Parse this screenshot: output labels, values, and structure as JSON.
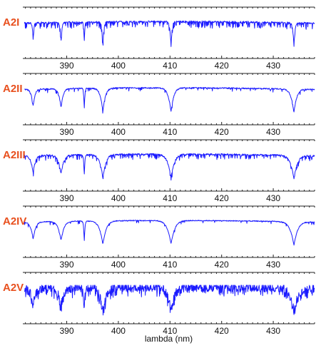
{
  "chart_data": {
    "type": "line",
    "title": "",
    "xlabel": "lambda (nm)",
    "xlim": [
      381.5,
      438
    ],
    "x_tick_labels": [
      "390",
      "400",
      "410",
      "420",
      "430"
    ],
    "x_ticks": [
      390,
      400,
      410,
      420,
      430
    ],
    "lines_nm": {
      "Ca_K": 393.4,
      "Ca_H": 396.8,
      "H_epsilon": 397.0,
      "H_zeta": 388.9,
      "H_eta": 383.5,
      "H_delta": 410.2,
      "H_gamma": 434.0
    },
    "series": [
      {
        "name": "A2I",
        "line_width": 0.35,
        "metal_strength": 0.35,
        "noise": 0.05
      },
      {
        "name": "A2II",
        "line_width": 0.9,
        "metal_strength": 0.1,
        "noise": 0.04
      },
      {
        "name": "A2III",
        "line_width": 1.1,
        "metal_strength": 0.22,
        "noise": 0.05
      },
      {
        "name": "A2IV",
        "line_width": 1.2,
        "metal_strength": 0.05,
        "noise": 0.03
      },
      {
        "name": "A2V",
        "line_width": 1.3,
        "metal_strength": 0.35,
        "noise": 0.3
      }
    ]
  }
}
